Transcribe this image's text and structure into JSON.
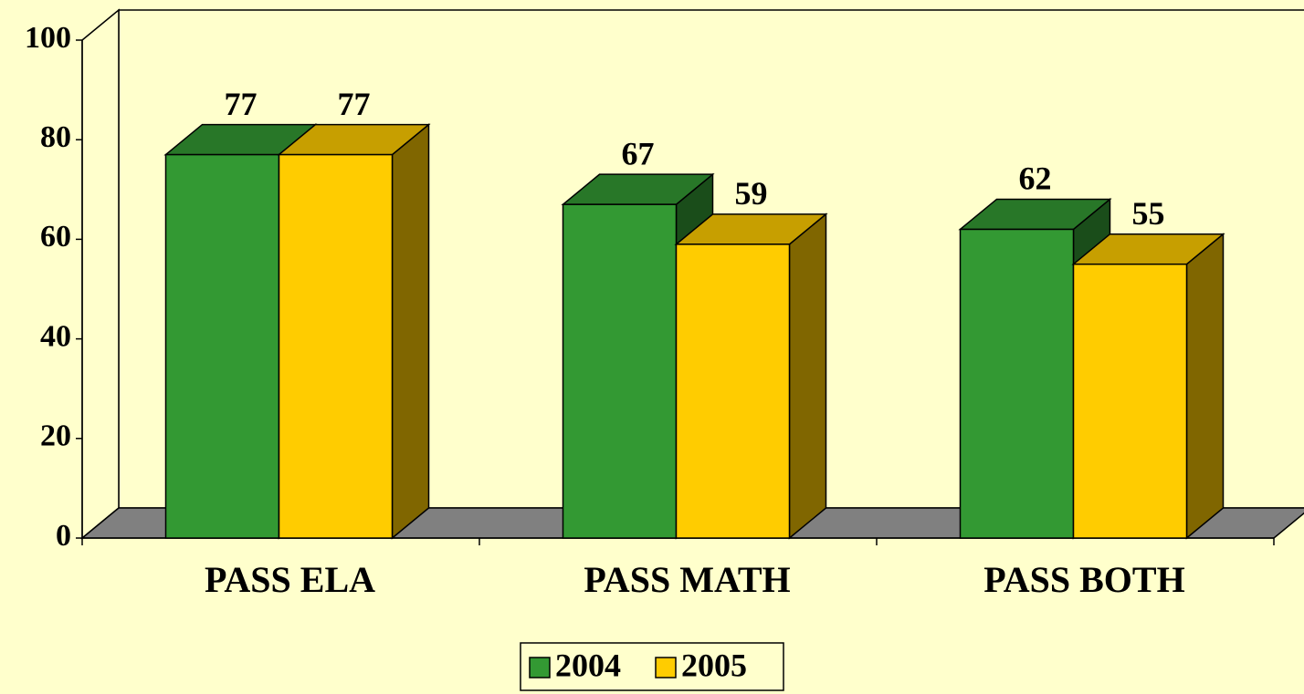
{
  "chart_data": {
    "type": "bar3d",
    "categories": [
      "PASS ELA",
      "PASS MATH",
      "PASS BOTH"
    ],
    "series": [
      {
        "name": "2004",
        "color": "#339933",
        "values": [
          77,
          67,
          62
        ]
      },
      {
        "name": "2005",
        "color": "#FFCC00",
        "values": [
          77,
          59,
          55
        ]
      }
    ],
    "ylim": [
      0,
      100
    ],
    "yticks": [
      0,
      20,
      40,
      60,
      80,
      100
    ],
    "legend": "bottom"
  }
}
